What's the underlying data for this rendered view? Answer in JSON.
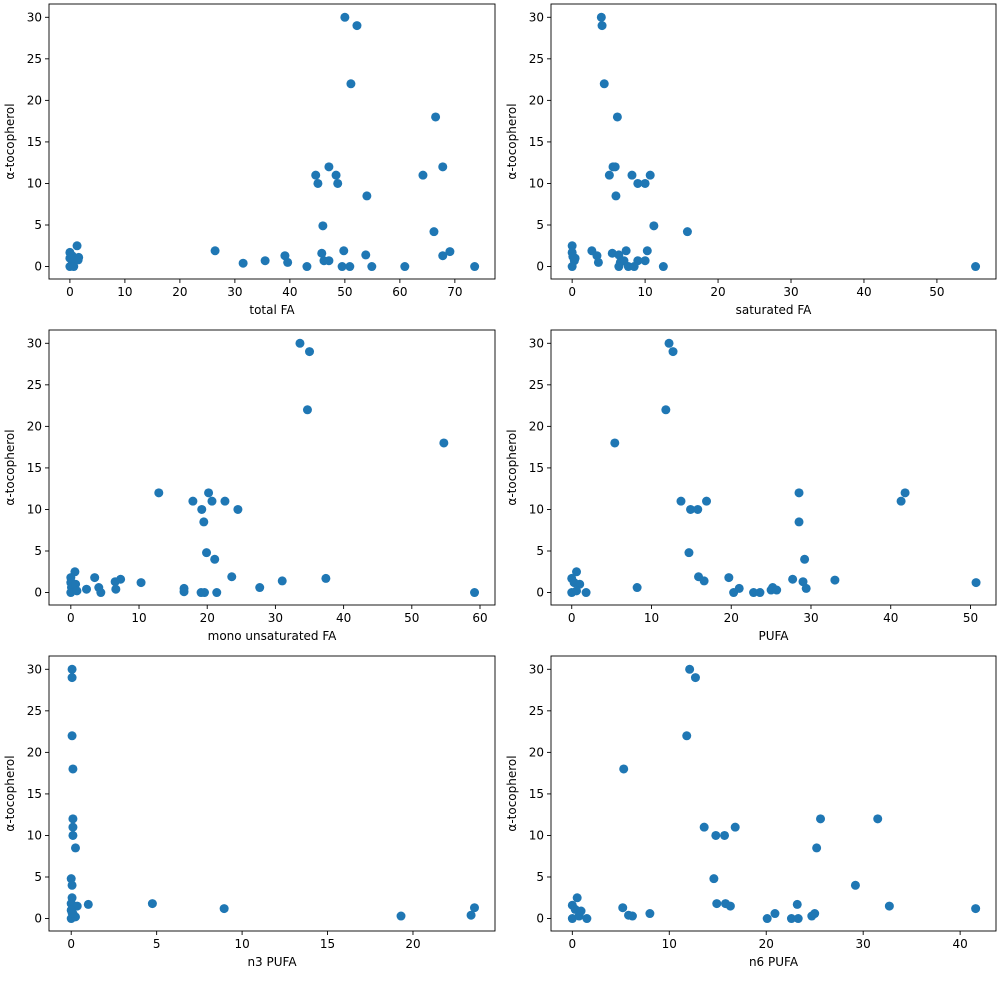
{
  "chart_data": [
    {
      "type": "scatter",
      "title": "",
      "xlabel": "total FA",
      "ylabel": "α-tocopherol",
      "xlim": [
        -3.8,
        77.3
      ],
      "ylim": [
        -1.5,
        31.6
      ],
      "xticks": [
        0,
        10,
        20,
        30,
        40,
        50,
        60,
        70
      ],
      "yticks": [
        0,
        5,
        10,
        15,
        20,
        25,
        30
      ],
      "color": "#1f77b4",
      "points": [
        [
          50,
          30
        ],
        [
          52.2,
          29
        ],
        [
          51.1,
          22
        ],
        [
          66.5,
          18
        ],
        [
          47.1,
          12
        ],
        [
          67.8,
          12
        ],
        [
          44.7,
          11
        ],
        [
          48.4,
          11
        ],
        [
          64.2,
          11
        ],
        [
          45.1,
          10
        ],
        [
          48.7,
          10
        ],
        [
          54,
          8.5
        ],
        [
          46,
          4.9
        ],
        [
          66.2,
          4.2
        ],
        [
          1.3,
          2.5
        ],
        [
          26.4,
          1.9
        ],
        [
          49.8,
          1.9
        ],
        [
          69.1,
          1.8
        ],
        [
          0,
          1.7
        ],
        [
          0.4,
          1.3
        ],
        [
          0,
          1
        ],
        [
          0.5,
          0.5
        ],
        [
          0,
          0
        ],
        [
          0.7,
          0
        ],
        [
          1.6,
          1.1
        ],
        [
          1.5,
          0.8
        ],
        [
          39.1,
          1.3
        ],
        [
          45.8,
          1.6
        ],
        [
          53.8,
          1.4
        ],
        [
          67.8,
          1.3
        ],
        [
          39.6,
          0.5
        ],
        [
          35.5,
          0.7
        ],
        [
          31.5,
          0.4
        ],
        [
          46.2,
          0.7
        ],
        [
          47.1,
          0.7
        ],
        [
          43.1,
          0
        ],
        [
          49.5,
          0
        ],
        [
          50.9,
          0
        ],
        [
          54.9,
          0
        ],
        [
          60.9,
          0
        ],
        [
          73.6,
          0
        ]
      ]
    },
    {
      "type": "scatter",
      "title": "",
      "xlabel": "saturated FA",
      "ylabel": "α-tocopherol",
      "xlim": [
        -2.9,
        58.1
      ],
      "ylim": [
        -1.5,
        31.6
      ],
      "xticks": [
        0,
        10,
        20,
        30,
        40,
        50
      ],
      "yticks": [
        0,
        5,
        10,
        15,
        20,
        25,
        30
      ],
      "color": "#1f77b4",
      "points": [
        [
          4,
          30
        ],
        [
          4.1,
          29
        ],
        [
          4.4,
          22
        ],
        [
          6.2,
          18
        ],
        [
          5.6,
          12
        ],
        [
          5.9,
          12
        ],
        [
          5.1,
          11
        ],
        [
          8.2,
          11
        ],
        [
          10.7,
          11
        ],
        [
          9,
          10
        ],
        [
          10,
          10
        ],
        [
          6,
          8.5
        ],
        [
          11.2,
          4.9
        ],
        [
          15.8,
          4.2
        ],
        [
          2.7,
          1.9
        ],
        [
          3.4,
          1.3
        ],
        [
          3.6,
          0.5
        ],
        [
          5.5,
          1.6
        ],
        [
          6.4,
          1.4
        ],
        [
          7.4,
          1.9
        ],
        [
          10.3,
          1.9
        ],
        [
          6.6,
          0.5
        ],
        [
          7.1,
          0.7
        ],
        [
          9,
          0.7
        ],
        [
          10,
          0.7
        ],
        [
          6.4,
          0
        ],
        [
          7.7,
          0
        ],
        [
          8.5,
          0
        ],
        [
          12.5,
          0
        ],
        [
          55.3,
          0
        ],
        [
          0,
          2.5
        ],
        [
          0,
          1.7
        ],
        [
          0.1,
          1.2
        ],
        [
          0.3,
          0.7
        ],
        [
          0,
          0
        ],
        [
          0.4,
          1
        ]
      ]
    },
    {
      "type": "scatter",
      "title": "",
      "xlabel": "mono unsaturated FA",
      "ylabel": "α-tocopherol",
      "xlim": [
        -3.2,
        62.2
      ],
      "ylim": [
        -1.5,
        31.6
      ],
      "xticks": [
        0,
        10,
        20,
        30,
        40,
        50,
        60
      ],
      "yticks": [
        0,
        5,
        10,
        15,
        20,
        25,
        30
      ],
      "color": "#1f77b4",
      "points": [
        [
          33.6,
          30
        ],
        [
          35,
          29
        ],
        [
          34.7,
          22
        ],
        [
          54.7,
          18
        ],
        [
          12.9,
          12
        ],
        [
          20.2,
          12
        ],
        [
          17.9,
          11
        ],
        [
          20.7,
          11
        ],
        [
          22.6,
          11
        ],
        [
          19.2,
          10
        ],
        [
          24.5,
          10
        ],
        [
          19.5,
          8.5
        ],
        [
          19.9,
          4.8
        ],
        [
          21.1,
          4
        ],
        [
          23.6,
          1.9
        ],
        [
          3.5,
          1.8
        ],
        [
          7.3,
          1.6
        ],
        [
          6.5,
          1.3
        ],
        [
          10.3,
          1.2
        ],
        [
          31,
          1.4
        ],
        [
          37.4,
          1.7
        ],
        [
          4.1,
          0.6
        ],
        [
          2.3,
          0.4
        ],
        [
          6.6,
          0.4
        ],
        [
          4.4,
          0
        ],
        [
          16.6,
          0.5
        ],
        [
          16.6,
          0.1
        ],
        [
          27.7,
          0.6
        ],
        [
          19.1,
          0
        ],
        [
          19.6,
          0
        ],
        [
          21.4,
          0
        ],
        [
          59.2,
          0
        ],
        [
          0.6,
          2.5
        ],
        [
          0,
          1.8
        ],
        [
          0,
          1.2
        ],
        [
          0.1,
          0.6
        ],
        [
          0,
          0
        ],
        [
          0.7,
          1
        ],
        [
          0.9,
          0.2
        ]
      ]
    },
    {
      "type": "scatter",
      "title": "",
      "xlabel": "PUFA",
      "ylabel": "α-tocopherol",
      "xlim": [
        -2.6,
        53.2
      ],
      "ylim": [
        -1.5,
        31.6
      ],
      "xticks": [
        0,
        10,
        20,
        30,
        40,
        50
      ],
      "yticks": [
        0,
        5,
        10,
        15,
        20,
        25,
        30
      ],
      "color": "#1f77b4",
      "points": [
        [
          12.2,
          30
        ],
        [
          12.7,
          29
        ],
        [
          11.8,
          22
        ],
        [
          5.4,
          18
        ],
        [
          28.5,
          12
        ],
        [
          41.8,
          12
        ],
        [
          13.7,
          11
        ],
        [
          16.9,
          11
        ],
        [
          41.3,
          11
        ],
        [
          14.9,
          10
        ],
        [
          15.8,
          10
        ],
        [
          28.5,
          8.5
        ],
        [
          14.7,
          4.8
        ],
        [
          29.2,
          4
        ],
        [
          15.9,
          1.9
        ],
        [
          19.7,
          1.8
        ],
        [
          27.7,
          1.6
        ],
        [
          16.6,
          1.4
        ],
        [
          29,
          1.3
        ],
        [
          33,
          1.5
        ],
        [
          50.7,
          1.2
        ],
        [
          8.2,
          0.6
        ],
        [
          21,
          0.5
        ],
        [
          20.3,
          0
        ],
        [
          22.8,
          0
        ],
        [
          23.6,
          0
        ],
        [
          25,
          0.3
        ],
        [
          25.2,
          0.6
        ],
        [
          25.7,
          0.3
        ],
        [
          29.4,
          0.5
        ],
        [
          0.6,
          2.5
        ],
        [
          0,
          1.7
        ],
        [
          0.3,
          1.2
        ],
        [
          1,
          1
        ],
        [
          0,
          0
        ],
        [
          0.6,
          0.2
        ],
        [
          1.8,
          0
        ]
      ]
    },
    {
      "type": "scatter",
      "title": "",
      "xlabel": "n3 PUFA",
      "ylabel": "α-tocopherol",
      "xlim": [
        -1.3,
        24.8
      ],
      "ylim": [
        -1.5,
        31.6
      ],
      "xticks": [
        0,
        5,
        10,
        15,
        20
      ],
      "yticks": [
        0,
        5,
        10,
        15,
        20,
        25,
        30
      ],
      "color": "#1f77b4",
      "points": [
        [
          0.05,
          30
        ],
        [
          0.05,
          29
        ],
        [
          0.05,
          22
        ],
        [
          0.1,
          18
        ],
        [
          0.1,
          12
        ],
        [
          0.1,
          11
        ],
        [
          0.1,
          10
        ],
        [
          0.25,
          8.5
        ],
        [
          0,
          4.8
        ],
        [
          0.05,
          4
        ],
        [
          0.05,
          2.5
        ],
        [
          0,
          1.8
        ],
        [
          0.2,
          1.5
        ],
        [
          0.35,
          1.5
        ],
        [
          1,
          1.7
        ],
        [
          4.75,
          1.8
        ],
        [
          8.95,
          1.2
        ],
        [
          19.3,
          0.3
        ],
        [
          23.4,
          0.4
        ],
        [
          23.6,
          1.3
        ],
        [
          0,
          1
        ],
        [
          0.05,
          0.7
        ],
        [
          0,
          0
        ],
        [
          0.25,
          0.2
        ],
        [
          0.1,
          0.6
        ]
      ]
    },
    {
      "type": "scatter",
      "title": "",
      "xlabel": "n6 PUFA",
      "ylabel": "α-tocopherol",
      "xlim": [
        -2.2,
        43.7
      ],
      "ylim": [
        -1.5,
        31.6
      ],
      "xticks": [
        0,
        10,
        20,
        30,
        40
      ],
      "yticks": [
        0,
        5,
        10,
        15,
        20,
        25,
        30
      ],
      "color": "#1f77b4",
      "points": [
        [
          12.1,
          30
        ],
        [
          12.7,
          29
        ],
        [
          11.8,
          22
        ],
        [
          5.3,
          18
        ],
        [
          25.6,
          12
        ],
        [
          31.5,
          12
        ],
        [
          13.6,
          11
        ],
        [
          16.8,
          11
        ],
        [
          14.8,
          10
        ],
        [
          15.7,
          10
        ],
        [
          25.2,
          8.5
        ],
        [
          14.6,
          4.8
        ],
        [
          29.2,
          4
        ],
        [
          23.2,
          1.7
        ],
        [
          14.9,
          1.8
        ],
        [
          15.8,
          1.8
        ],
        [
          16.3,
          1.5
        ],
        [
          5.2,
          1.3
        ],
        [
          32.7,
          1.5
        ],
        [
          41.6,
          1.2
        ],
        [
          8,
          0.6
        ],
        [
          5.8,
          0.4
        ],
        [
          6.2,
          0.3
        ],
        [
          20.9,
          0.6
        ],
        [
          20.1,
          0
        ],
        [
          22.6,
          0
        ],
        [
          23.3,
          0
        ],
        [
          24.7,
          0.3
        ],
        [
          25,
          0.6
        ],
        [
          0.5,
          2.5
        ],
        [
          0,
          1.6
        ],
        [
          0.3,
          1.1
        ],
        [
          0.9,
          0.9
        ],
        [
          0,
          0
        ],
        [
          0.7,
          0.3
        ],
        [
          1.5,
          0
        ]
      ]
    }
  ]
}
